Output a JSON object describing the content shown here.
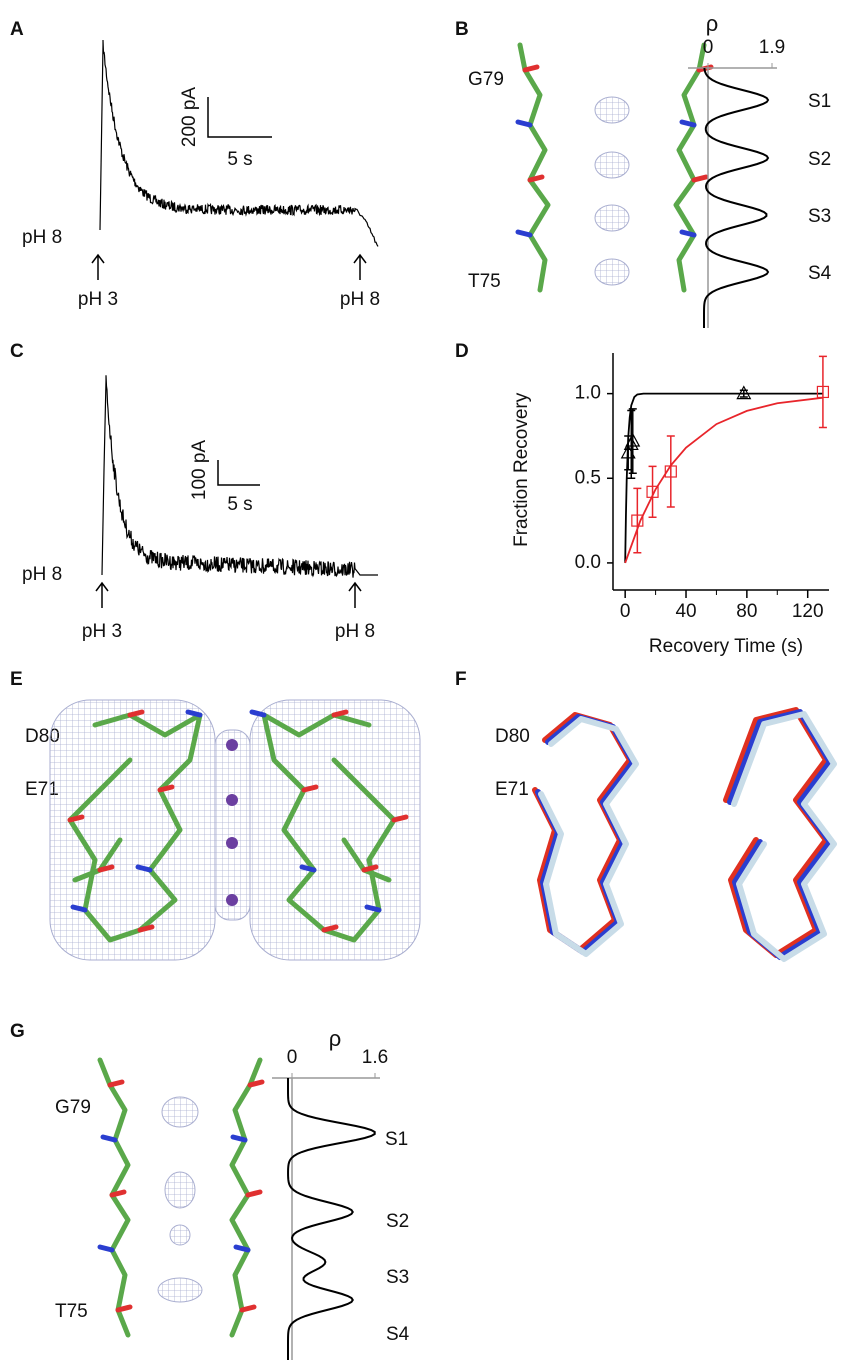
{
  "panel_a": {
    "label": "A",
    "start_label": "pH 8",
    "arrow_labels": [
      "pH 3",
      "pH 8"
    ],
    "scale_y": "200 pA",
    "scale_x": "5 s"
  },
  "panel_b": {
    "label": "B",
    "residues": [
      "G79",
      "T75"
    ],
    "density_symbol": "ρ",
    "density_ticks": [
      0,
      1.9
    ],
    "sites": [
      "S1",
      "S2",
      "S3",
      "S4"
    ]
  },
  "panel_c": {
    "label": "C",
    "start_label": "pH 8",
    "arrow_labels": [
      "pH 3",
      "pH 8"
    ],
    "scale_y": "100 pA",
    "scale_x": "5 s"
  },
  "chart_data": {
    "type": "scatter",
    "panel_label": "D",
    "ylabel": "Fraction Recovery",
    "xlabel": "Recovery Time (s)",
    "xlim": [
      -8,
      134
    ],
    "ylim": [
      -0.16,
      1.24
    ],
    "xticks": [
      0,
      40,
      80,
      120
    ],
    "minor_xticks": [
      20,
      60,
      100
    ],
    "yticks": [
      {
        "value": 0,
        "label": "0.0"
      },
      {
        "value": 0.5,
        "label": "0.5"
      },
      {
        "value": 1,
        "label": "1.0"
      }
    ],
    "series": [
      {
        "color": "#000000",
        "marker": "triangle",
        "x": [
          2,
          4,
          5,
          78
        ],
        "values": [
          0.65,
          0.7,
          0.72,
          1.0
        ],
        "errors": [
          0.1,
          0.2,
          0.19,
          0.02
        ]
      },
      {
        "color": "#e8252b",
        "marker": "square",
        "x": [
          8,
          18,
          30,
          130
        ],
        "values": [
          0.25,
          0.42,
          0.54,
          1.01
        ],
        "errors": [
          0.19,
          0.15,
          0.21,
          0.21
        ]
      }
    ],
    "fits": [
      {
        "color": "#000000",
        "x": [
          0,
          0.5,
          1,
          2,
          3,
          4,
          6,
          8,
          12,
          20,
          40,
          80,
          130
        ],
        "values": [
          0,
          0.28,
          0.49,
          0.74,
          0.86,
          0.93,
          0.98,
          0.995,
          1,
          1,
          1,
          1,
          1
        ]
      },
      {
        "color": "#e8252b",
        "x": [
          0,
          10,
          20,
          30,
          40,
          60,
          80,
          100,
          130
        ],
        "values": [
          0,
          0.25,
          0.435,
          0.576,
          0.681,
          0.82,
          0.898,
          0.943,
          0.976
        ]
      }
    ]
  },
  "panel_e": {
    "label": "E",
    "residues": [
      "D80",
      "E71"
    ]
  },
  "panel_f": {
    "label": "F",
    "residues": [
      "D80",
      "E71"
    ]
  },
  "panel_g": {
    "label": "G",
    "residues": [
      "G79",
      "T75"
    ],
    "density_symbol": "ρ",
    "density_ticks": [
      0,
      1.6
    ],
    "sites": [
      "S1",
      "S2",
      "S3",
      "S4"
    ]
  }
}
